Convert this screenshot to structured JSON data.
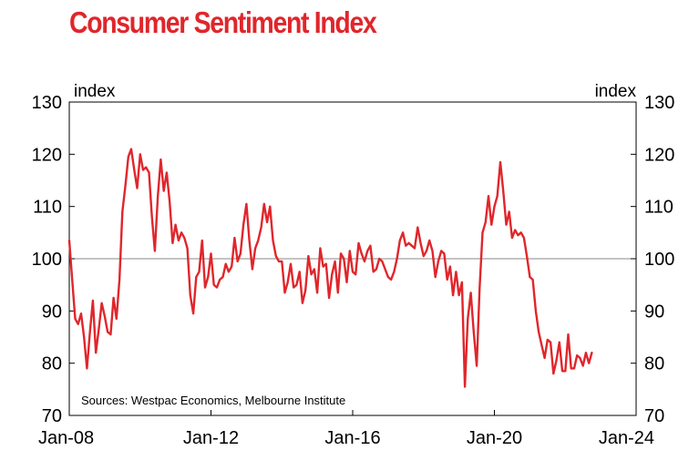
{
  "chart_data": {
    "type": "line",
    "title": "Consumer Sentiment Index",
    "ylabel_left": "index",
    "ylabel_right": "index",
    "source": "Sources: Westpac Economics, Melbourne Institute",
    "ylim": [
      70,
      130
    ],
    "yticks": [
      70,
      80,
      90,
      100,
      110,
      120,
      130
    ],
    "xlim": [
      2008.0,
      2024.0
    ],
    "xticks": [
      {
        "label": "Jan-08",
        "value": 2008.0
      },
      {
        "label": "Jan-12",
        "value": 2012.0
      },
      {
        "label": "Jan-16",
        "value": 2016.0
      },
      {
        "label": "Jan-20",
        "value": 2020.0
      },
      {
        "label": "Jan-24",
        "value": 2024.0
      }
    ],
    "reference_line": 100,
    "line_color": "#e0262b",
    "title_color": "#e0262b",
    "series": [
      {
        "name": "Consumer Sentiment Index",
        "start": 2008.0,
        "step_months": 1,
        "values": [
          103.5,
          96.0,
          88.5,
          87.5,
          89.5,
          85.0,
          79.0,
          86.0,
          92.0,
          82.0,
          86.5,
          91.5,
          89.0,
          86.0,
          85.5,
          92.5,
          88.5,
          96.0,
          109.0,
          114.0,
          119.5,
          121.0,
          117.0,
          113.5,
          120.0,
          117.0,
          117.5,
          116.5,
          108.0,
          101.5,
          112.0,
          119.0,
          113.0,
          116.5,
          111.0,
          103.0,
          106.5,
          103.5,
          105.0,
          104.0,
          102.0,
          93.0,
          89.5,
          96.5,
          97.5,
          103.5,
          94.5,
          96.5,
          101.0,
          95.0,
          94.5,
          96.0,
          96.5,
          99.0,
          97.5,
          98.5,
          104.0,
          99.5,
          101.0,
          106.5,
          110.5,
          103.5,
          98.0,
          102.0,
          103.5,
          106.0,
          110.5,
          107.0,
          110.0,
          103.5,
          100.5,
          99.5,
          99.5,
          93.5,
          95.5,
          99.0,
          94.5,
          95.0,
          97.5,
          91.5,
          94.0,
          100.5,
          97.0,
          98.0,
          93.5,
          102.0,
          98.5,
          99.0,
          92.5,
          97.0,
          99.5,
          93.5,
          101.0,
          100.0,
          95.5,
          101.5,
          97.5,
          97.0,
          103.0,
          101.0,
          99.5,
          101.5,
          102.5,
          97.5,
          98.0,
          100.0,
          99.5,
          98.0,
          96.5,
          96.0,
          97.5,
          100.0,
          103.5,
          105.0,
          102.5,
          103.0,
          102.5,
          102.0,
          106.0,
          103.0,
          100.5,
          101.5,
          103.5,
          101.5,
          96.5,
          99.5,
          101.5,
          101.0,
          96.0,
          98.5,
          93.0,
          97.5,
          93.0,
          95.5,
          75.5,
          88.5,
          93.5,
          86.0,
          79.5,
          94.5,
          105.0,
          107.0,
          112.0,
          106.5,
          110.0,
          112.0,
          118.5,
          113.0,
          106.5,
          109.0,
          104.0,
          105.5,
          104.5,
          105.0,
          104.0,
          100.5,
          96.5,
          96.0,
          90.0,
          86.0,
          83.5,
          81.0,
          84.5,
          84.0,
          78.0,
          80.5,
          84.0,
          78.5,
          78.5,
          85.5,
          79.0,
          79.0,
          81.5,
          81.0,
          79.5,
          82.0,
          80.0,
          82.0
        ]
      }
    ]
  }
}
